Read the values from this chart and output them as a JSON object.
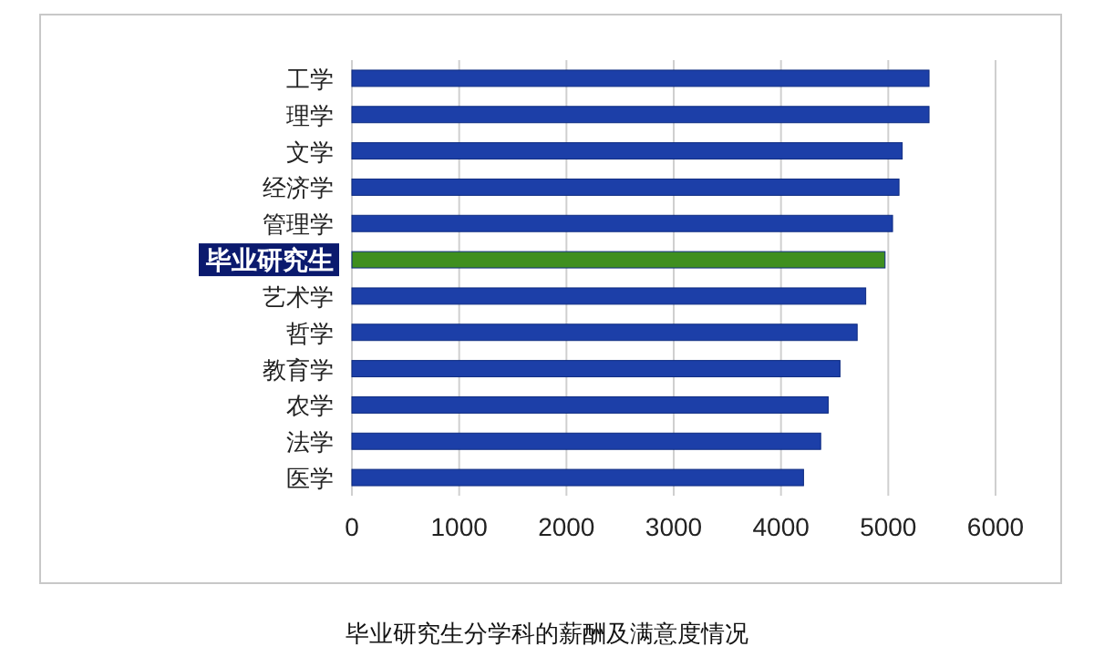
{
  "chart_data": {
    "type": "bar",
    "orientation": "horizontal",
    "categories": [
      "工学",
      "理学",
      "文学",
      "经济学",
      "管理学",
      "毕业研究生",
      "艺术学",
      "哲学",
      "教育学",
      "农学",
      "法学",
      "医学"
    ],
    "values": [
      5380,
      5380,
      5130,
      5100,
      5040,
      4970,
      4790,
      4710,
      4550,
      4440,
      4370,
      4210
    ],
    "colors": [
      "#1c3fa8",
      "#1c3fa8",
      "#1c3fa8",
      "#1c3fa8",
      "#1c3fa8",
      "#3f8f1f",
      "#1c3fa8",
      "#1c3fa8",
      "#1c3fa8",
      "#1c3fa8",
      "#1c3fa8",
      "#1c3fa8"
    ],
    "xlim": [
      0,
      6000
    ],
    "xticks": [
      0,
      1000,
      2000,
      3000,
      4000,
      5000,
      6000
    ],
    "grid": "x",
    "annotations": [
      "毕业研究生分学科的薪酬及满意度情况"
    ]
  }
}
